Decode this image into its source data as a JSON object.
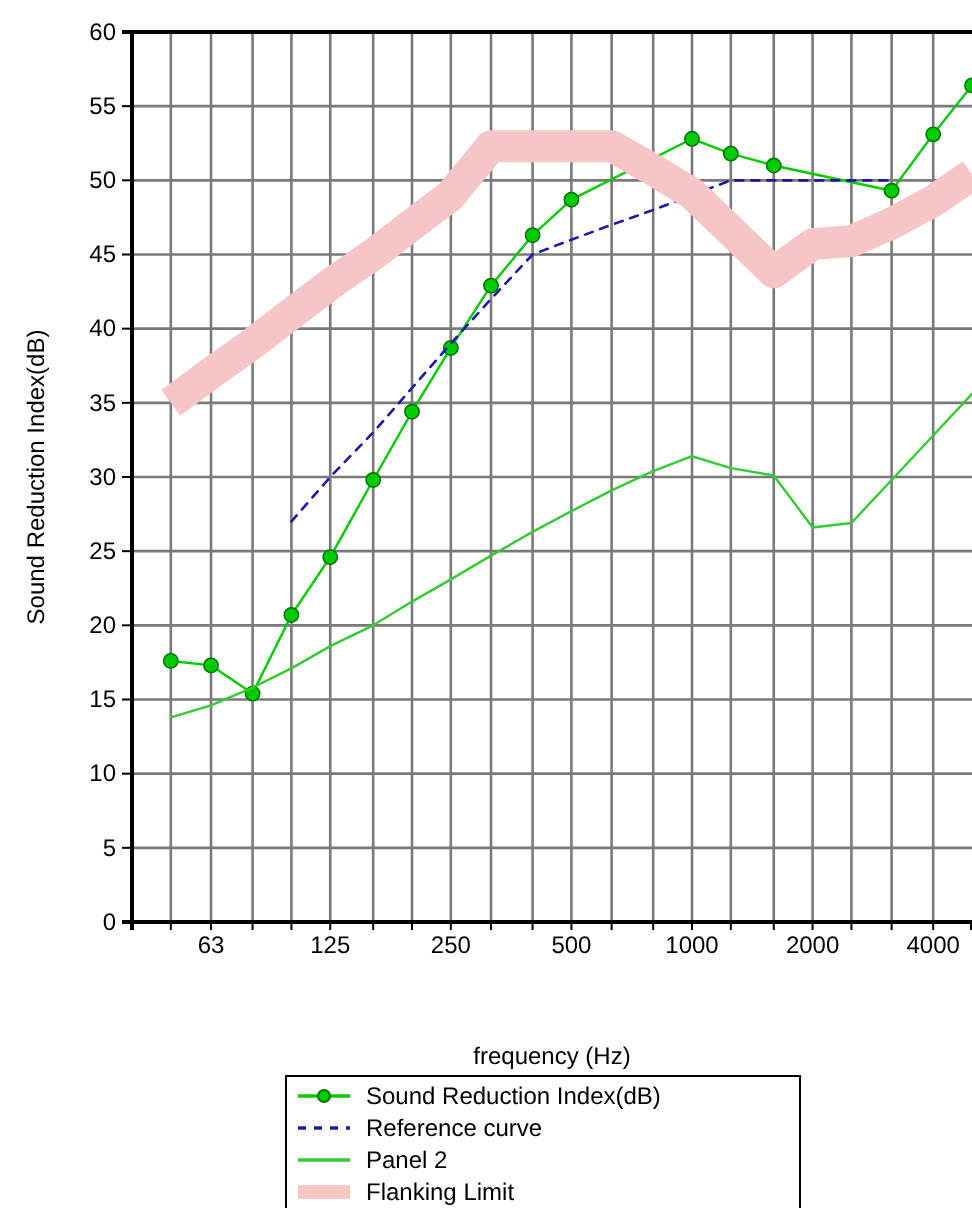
{
  "chart_data": {
    "type": "line",
    "xlabel": "frequency (Hz)",
    "ylabel": "Sound Reduction Index(dB)",
    "log": "x",
    "x": [
      50,
      63,
      80,
      100,
      125,
      160,
      200,
      250,
      315,
      400,
      500,
      630,
      800,
      1000,
      1250,
      1600,
      2000,
      2500,
      3150,
      4000,
      5000
    ],
    "xlim": [
      40,
      5000
    ],
    "xticks": [
      {
        "value": 50,
        "label": null
      },
      63,
      {
        "value": 80,
        "label": null
      },
      {
        "value": 100,
        "label": null
      },
      125,
      {
        "value": 160,
        "label": null
      },
      {
        "value": 200,
        "label": null
      },
      250,
      {
        "value": 315,
        "label": null
      },
      {
        "value": 400,
        "label": null
      },
      500,
      {
        "value": 630,
        "label": null
      },
      {
        "value": 800,
        "label": null
      },
      1000,
      {
        "value": 1250,
        "label": null
      },
      {
        "value": 1600,
        "label": null
      },
      2000,
      {
        "value": 2500,
        "label": null
      },
      {
        "value": 3150,
        "label": null
      },
      4000
    ],
    "ylim": [
      0,
      60
    ],
    "yticks": [
      0,
      5,
      10,
      15,
      20,
      25,
      30,
      35,
      40,
      45,
      50,
      55,
      60
    ],
    "grid": true,
    "legend": "bottom",
    "series": [
      {
        "name": "Sound Reduction Index(dB)",
        "color": "#00cc00",
        "marker": "circle",
        "values": [
          17.6,
          17.3,
          15.4,
          20.7,
          24.6,
          29.8,
          34.4,
          38.7,
          42.9,
          46.3,
          48.7,
          null,
          null,
          52.8,
          51.8,
          51.0,
          null,
          null,
          49.3,
          53.1,
          56.4
        ]
      },
      {
        "name": "Reference curve",
        "color": "#1a1aa8",
        "line_style": "dashed",
        "values": [
          null,
          null,
          null,
          27,
          30,
          33,
          36,
          39,
          42,
          45,
          46,
          47,
          48,
          null,
          50,
          50,
          50,
          50,
          50,
          null,
          null
        ]
      },
      {
        "name": "Panel 2",
        "color": "#33cc33",
        "values": [
          13.8,
          14.6,
          15.8,
          17.1,
          18.6,
          20.0,
          21.6,
          23.1,
          24.7,
          26.3,
          27.7,
          29.1,
          30.4,
          31.4,
          30.6,
          30.1,
          26.6,
          26.9,
          29.8,
          32.8,
          35.6
        ]
      },
      {
        "name": "Flanking Limit",
        "color": "#f6c6c6",
        "values": [
          35,
          37,
          39,
          41,
          43,
          45,
          47,
          49,
          52.3,
          52.3,
          52.3,
          52.3,
          50.7,
          49.1,
          46.6,
          43.8,
          45.7,
          45.9,
          47.1,
          48.6,
          50.4
        ]
      }
    ]
  }
}
